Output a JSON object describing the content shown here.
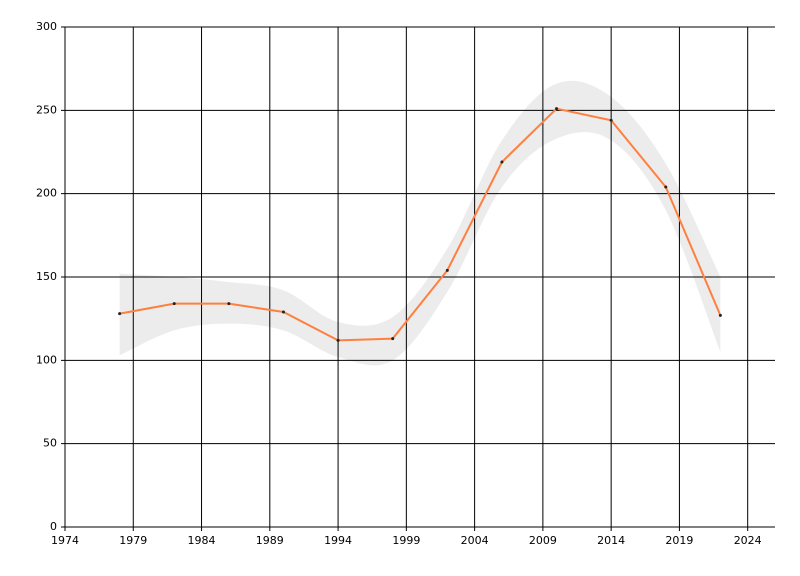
{
  "chart_data": {
    "type": "line",
    "x": [
      1978,
      1982,
      1986,
      1990,
      1994,
      1998,
      2002,
      2006,
      2010,
      2014,
      2018,
      2022
    ],
    "values": [
      128,
      134,
      134,
      129,
      112,
      113,
      154,
      219,
      251,
      244,
      204,
      127
    ],
    "color": "#ff7f3f",
    "band_upper": [
      152,
      150,
      147,
      142,
      123,
      126,
      167,
      232,
      266,
      258,
      218,
      150
    ],
    "band_lower": [
      103,
      118,
      122,
      118,
      102,
      100,
      141,
      204,
      233,
      232,
      190,
      105
    ],
    "band_color": "#ececec",
    "xlim": [
      1974,
      2026
    ],
    "xticks": [
      1974,
      1979,
      1984,
      1989,
      1994,
      1999,
      2004,
      2009,
      2014,
      2019,
      2024
    ],
    "ylim": [
      0,
      300
    ],
    "yticks": [
      0,
      50,
      100,
      150,
      200,
      250,
      300
    ],
    "grid": true
  }
}
